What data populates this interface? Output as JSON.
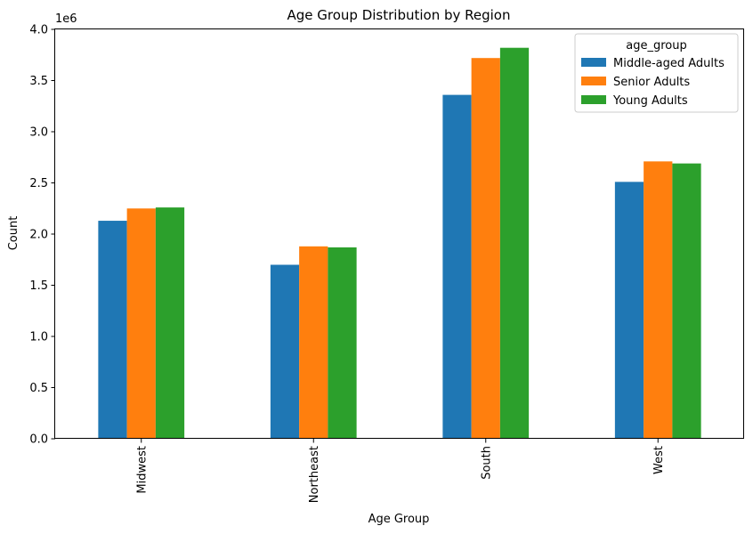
{
  "chart_data": {
    "type": "bar",
    "title": "Age Group Distribution by Region",
    "xlabel": "Age Group",
    "ylabel": "Count",
    "y_multiplier_label": "1e6",
    "categories": [
      "Midwest",
      "Northeast",
      "South",
      "West"
    ],
    "series": [
      {
        "name": "Middle-aged Adults",
        "values": [
          2130000,
          1700000,
          3360000,
          2510000
        ],
        "color": "#1f77b4"
      },
      {
        "name": "Senior Adults",
        "values": [
          2250000,
          1880000,
          3720000,
          2710000
        ],
        "color": "#ff7f0e"
      },
      {
        "name": "Young Adults",
        "values": [
          2260000,
          1870000,
          3820000,
          2690000
        ],
        "color": "#2ca02c"
      }
    ],
    "ylim": [
      0,
      4000000
    ],
    "yticks": [
      0,
      500000,
      1000000,
      1500000,
      2000000,
      2500000,
      3000000,
      3500000,
      4000000
    ],
    "ytick_labels": [
      "0.0",
      "0.5",
      "1.0",
      "1.5",
      "2.0",
      "2.5",
      "3.0",
      "3.5",
      "4.0"
    ],
    "legend_title": "age_group",
    "legend_position": "top-right",
    "grid": false
  }
}
